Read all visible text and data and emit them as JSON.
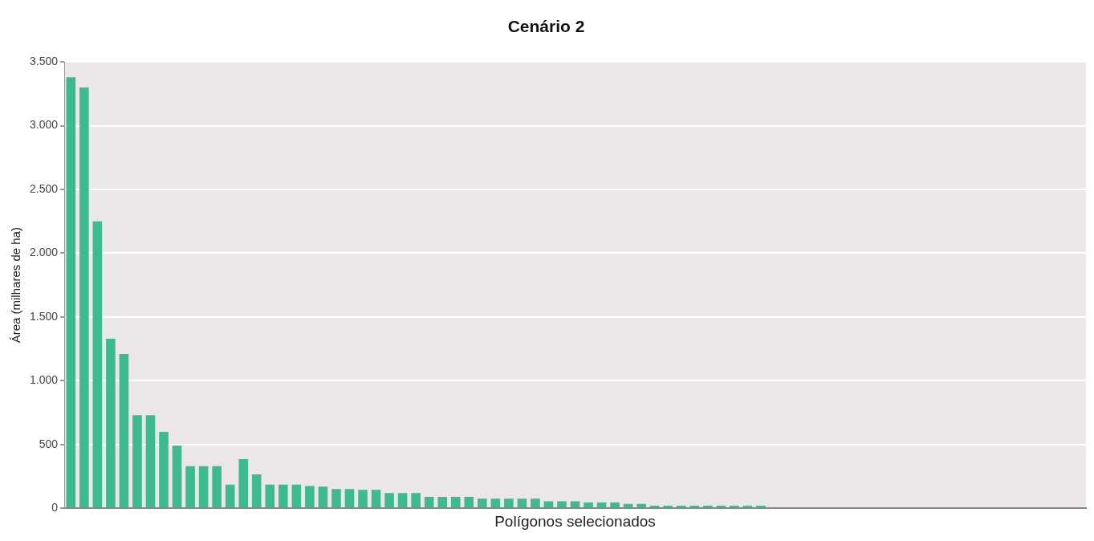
{
  "chart_data": {
    "type": "bar",
    "title": "Cenário 2",
    "xlabel": "Polígonos selecionados",
    "ylabel": "Área (milhares de ha)",
    "categories": [
      null,
      null,
      null,
      null,
      null,
      null,
      null,
      null,
      null,
      null,
      null,
      null,
      null,
      null,
      null,
      null,
      null,
      null,
      null,
      null,
      null,
      null,
      null,
      null,
      null,
      null,
      null,
      null,
      null,
      null,
      null,
      null,
      null,
      null,
      null,
      null,
      null,
      null,
      null,
      null,
      null,
      null,
      null,
      null,
      null,
      null,
      null,
      null,
      null,
      null,
      null,
      null,
      null,
      null,
      null,
      null,
      null,
      null,
      null,
      null,
      null,
      null,
      null,
      null,
      null,
      null,
      null,
      null,
      null,
      null,
      null,
      null,
      null,
      null,
      null,
      null,
      null
    ],
    "values": [
      3380,
      3300,
      2250,
      1330,
      1210,
      730,
      730,
      600,
      490,
      330,
      330,
      330,
      185,
      385,
      265,
      185,
      185,
      185,
      175,
      170,
      150,
      150,
      145,
      145,
      120,
      120,
      120,
      90,
      90,
      90,
      90,
      75,
      75,
      75,
      75,
      75,
      55,
      55,
      55,
      45,
      45,
      45,
      35,
      35,
      20,
      20,
      20,
      20,
      20,
      20,
      20,
      20,
      20,
      null,
      null,
      null,
      null,
      null,
      null,
      null,
      null,
      null,
      null,
      null,
      null,
      null,
      null,
      null,
      null,
      null,
      null,
      null,
      null,
      null,
      null,
      null,
      null
    ],
    "color": "#3dbb8f",
    "ylim": [
      0,
      3500
    ],
    "yticks": [
      {
        "value": 0,
        "label": "0"
      },
      {
        "value": 500,
        "label": "500"
      },
      {
        "value": 1000,
        "label": "1.000"
      },
      {
        "value": 1500,
        "label": "1.500"
      },
      {
        "value": 2000,
        "label": "2.000"
      },
      {
        "value": 2500,
        "label": "2.500"
      },
      {
        "value": 3000,
        "label": "3.000"
      },
      {
        "value": 3500,
        "label": "3.500"
      }
    ],
    "grid": "y",
    "legend": false
  }
}
